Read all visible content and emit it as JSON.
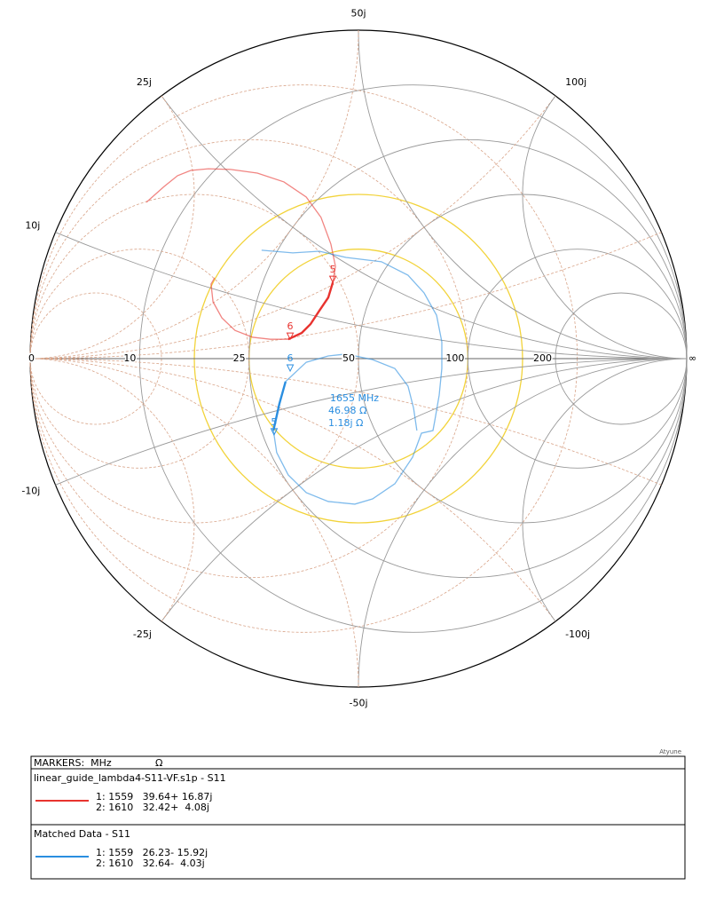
{
  "chart_data": {
    "type": "smith",
    "resistance_ticks": [
      0,
      10,
      25,
      50,
      100,
      200
    ],
    "infinity_label": "∞",
    "reactance_ticks": [
      {
        "value": 50,
        "label": "50j"
      },
      {
        "value": 25,
        "label": "25j"
      },
      {
        "value": 100,
        "label": "100j"
      },
      {
        "value": 10,
        "label": "10j"
      },
      {
        "value": -10,
        "label": "-10j"
      },
      {
        "value": -25,
        "label": "-25j"
      },
      {
        "value": -100,
        "label": "-100j"
      },
      {
        "value": -50,
        "label": "-50j"
      }
    ],
    "series": [
      {
        "name": "linear_guide_lambda4-S11-VF.s1p - S11",
        "color": "#e8332f",
        "x": [
          -0.646,
          -0.592,
          -0.551,
          -0.511,
          -0.457,
          -0.389,
          -0.308,
          -0.227,
          -0.159,
          -0.114,
          -0.084,
          -0.07,
          -0.078,
          -0.092,
          -0.119,
          -0.146,
          -0.173,
          -0.214,
          -0.268,
          -0.322,
          -0.376,
          -0.416,
          -0.443,
          -0.449,
          -0.438
        ],
        "values": [
          0.476,
          0.524,
          0.557,
          0.573,
          0.578,
          0.576,
          0.565,
          0.538,
          0.492,
          0.43,
          0.349,
          0.281,
          0.232,
          0.186,
          0.146,
          0.105,
          0.078,
          0.059,
          0.059,
          0.065,
          0.086,
          0.124,
          0.173,
          0.227,
          0.246
        ],
        "markers": [
          {
            "label": "5",
            "x": -0.078,
            "y": 0.232
          },
          {
            "label": "6",
            "x": -0.208,
            "y": 0.059
          }
        ],
        "legend_rows": [
          "1: 1559   39.64+ 16.87j",
          "2: 1610   32.42+  4.08j"
        ]
      },
      {
        "name": "Matched Data - S11",
        "color": "#2a8ee0",
        "x": [
          -0.295,
          -0.2,
          -0.119,
          -0.038,
          0.07,
          0.151,
          0.2,
          0.238,
          0.254,
          0.254,
          0.246,
          0.232,
          0.227,
          0.192,
          0.165,
          0.111,
          0.043,
          -0.011,
          -0.092,
          -0.159,
          -0.214,
          -0.249,
          -0.259,
          -0.241,
          -0.222,
          -0.159,
          -0.092,
          -0.038,
          0.043,
          0.111,
          0.151,
          0.168,
          0.178
        ],
        "values": [
          0.33,
          0.322,
          0.327,
          0.308,
          0.295,
          0.254,
          0.2,
          0.132,
          0.051,
          -0.03,
          -0.111,
          -0.192,
          -0.219,
          -0.227,
          -0.3,
          -0.381,
          -0.427,
          -0.443,
          -0.435,
          -0.408,
          -0.354,
          -0.286,
          -0.219,
          -0.138,
          -0.07,
          -0.011,
          0.008,
          0.014,
          -0.003,
          -0.03,
          -0.084,
          -0.151,
          -0.219
        ],
        "markers": [
          {
            "label": "6",
            "x": -0.208,
            "y": -0.038
          },
          {
            "label": "5",
            "x": -0.257,
            "y": -0.232
          }
        ],
        "legend_rows": [
          "1: 1559   26.23- 15.92j",
          "2: 1610   32.64-  4.03j"
        ]
      }
    ],
    "annotation": [
      "1655 MHz",
      "46.98 Ω",
      "1.18j Ω"
    ],
    "marker_header": "MARKERS:  MHz",
    "unit_header": "Ω",
    "brand": "Atyune"
  }
}
